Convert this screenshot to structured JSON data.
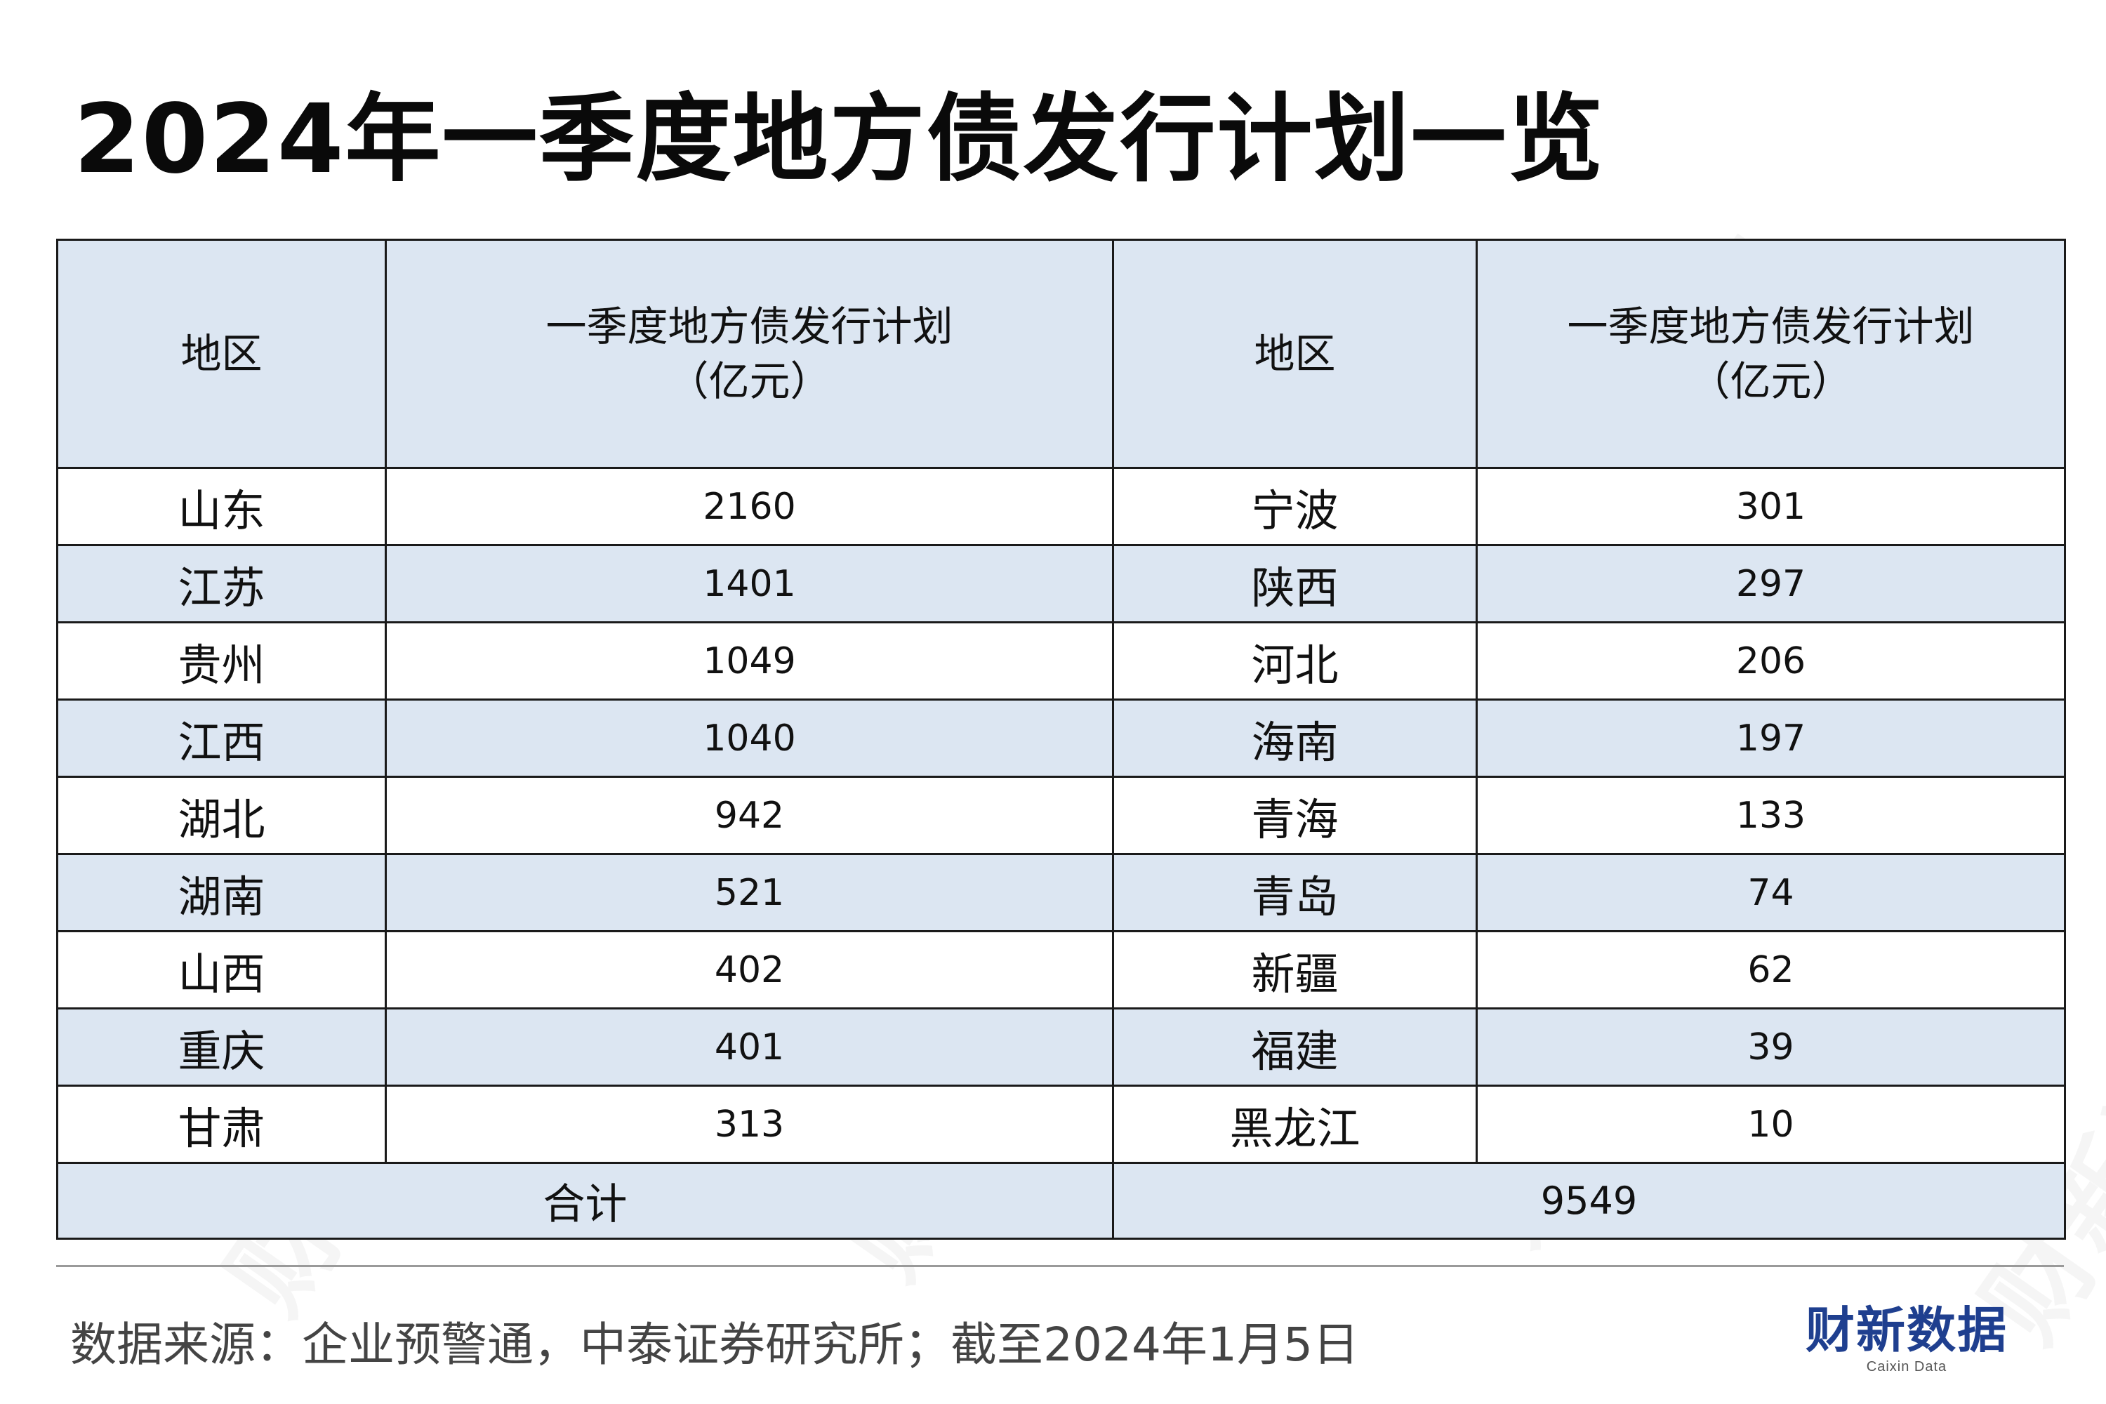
{
  "title": "2024年一季度地方债发行计划一览",
  "table": {
    "headers": [
      "地区",
      "一季度地方债发行计划\n（亿元）",
      "地区",
      "一季度地方债发行计划\n（亿元）"
    ],
    "rows": [
      {
        "region": "山东",
        "value": "2160",
        "region2": "宁波",
        "value2": "301"
      },
      {
        "region": "江苏",
        "value": "1401",
        "region2": "陕西",
        "value2": "297"
      },
      {
        "region": "贵州",
        "value": "1049",
        "region2": "河北",
        "value2": "206"
      },
      {
        "region": "江西",
        "value": "1040",
        "region2": "海南",
        "value2": "197"
      },
      {
        "region": "湖北",
        "value": "942",
        "region2": "青海",
        "value2": "133"
      },
      {
        "region": "湖南",
        "value": "521",
        "region2": "青岛",
        "value2": "74"
      },
      {
        "region": "山西",
        "value": "402",
        "region2": "新疆",
        "value2": "62"
      },
      {
        "region": "重庆",
        "value": "401",
        "region2": "福建",
        "value2": "39"
      },
      {
        "region": "甘肃",
        "value": "313",
        "region2": "黑龙江",
        "value2": "10"
      }
    ],
    "total_label": "合计",
    "total_value": "9549"
  },
  "source": "数据来源：企业预警通，中泰证券研究所；截至2024年1月5日",
  "brand": {
    "name": "财新数据",
    "subtitle": "Caixin Data"
  },
  "watermark_text": "财新数据",
  "colors": {
    "header_bg": "#dce6f2",
    "shaded_row_bg": "#dce6f2",
    "border": "#1a1a1a",
    "brand": "#1f3f8f"
  }
}
